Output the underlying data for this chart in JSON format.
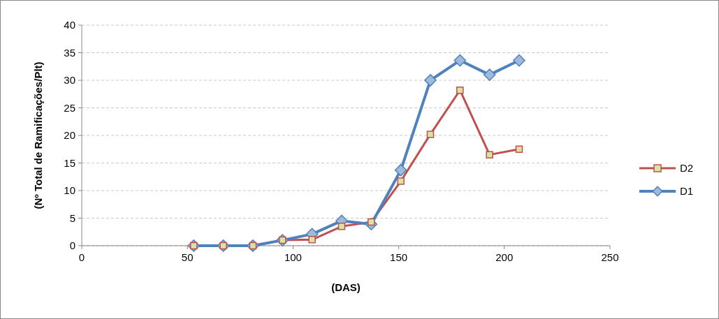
{
  "chart_data": {
    "type": "line",
    "xlabel": "(DAS)",
    "ylabel": "(Nº Total de Ramificações/Plt)",
    "x": [
      53,
      67,
      81,
      95,
      109,
      123,
      137,
      151,
      165,
      179,
      193,
      207
    ],
    "series": [
      {
        "name": "D2",
        "color": "#c0504d",
        "marker": "square",
        "values": [
          0,
          0,
          0,
          1.0,
          1.1,
          3.5,
          4.3,
          11.7,
          20.2,
          28.2,
          16.5,
          17.5
        ]
      },
      {
        "name": "D1",
        "color": "#4f81bd",
        "marker": "diamond",
        "values": [
          0,
          0,
          0,
          1.0,
          2.1,
          4.5,
          3.9,
          13.7,
          30,
          33.6,
          31,
          33.6
        ]
      }
    ],
    "xlim": [
      0,
      250
    ],
    "xticks": [
      0,
      50,
      100,
      150,
      200,
      250
    ],
    "ylim": [
      0,
      40
    ],
    "yticks": [
      0,
      5,
      10,
      15,
      20,
      25,
      30,
      35,
      40
    ],
    "grid": "y",
    "legend": "right"
  }
}
